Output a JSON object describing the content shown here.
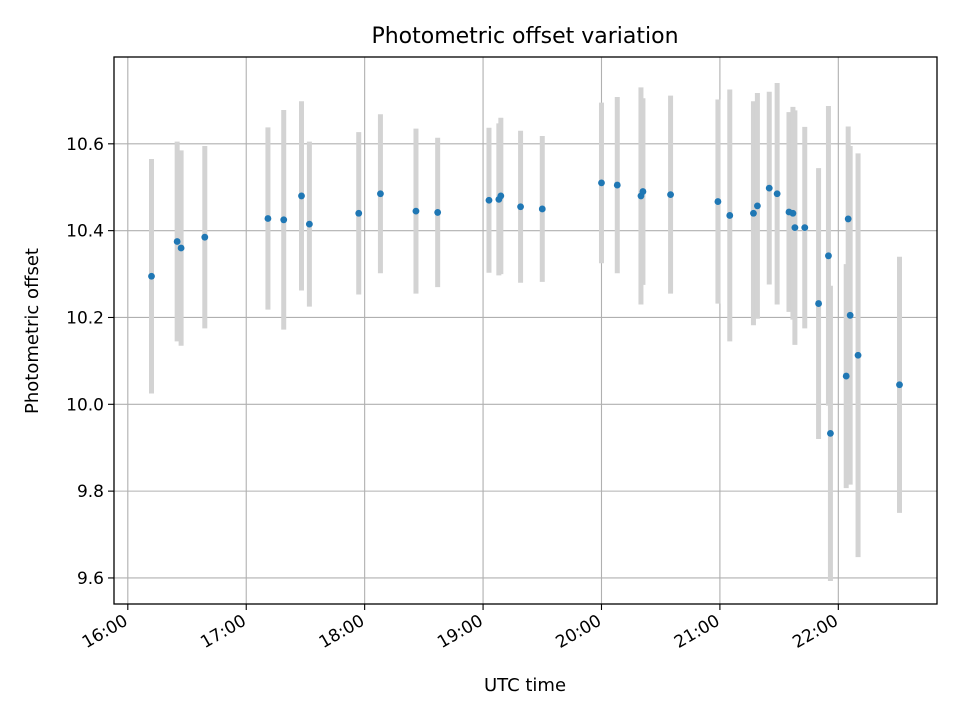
{
  "chart_data": {
    "type": "scatter",
    "title": "Photometric offset variation",
    "xlabel": "UTC time",
    "ylabel": "Photometric offset",
    "x_ticks": [
      "16:00",
      "17:00",
      "18:00",
      "19:00",
      "20:00",
      "21:00",
      "22:00"
    ],
    "y_ticks": [
      "9.6",
      "9.8",
      "10.0",
      "10.2",
      "10.4",
      "10.6"
    ],
    "xlim": [
      "15:53",
      "22:50"
    ],
    "ylim": [
      9.54,
      10.8
    ],
    "grid": true,
    "errorbar_color": "#d3d3d3",
    "point_color": "#1f77b4",
    "points": [
      {
        "x": "16:12",
        "y": 10.295,
        "err": 0.27
      },
      {
        "x": "16:25",
        "y": 10.375,
        "err": 0.23
      },
      {
        "x": "16:27",
        "y": 10.36,
        "err": 0.225
      },
      {
        "x": "16:39",
        "y": 10.385,
        "err": 0.21
      },
      {
        "x": "17:11",
        "y": 10.428,
        "err": 0.21
      },
      {
        "x": "17:19",
        "y": 10.425,
        "err": 0.253
      },
      {
        "x": "17:28",
        "y": 10.48,
        "err": 0.218
      },
      {
        "x": "17:32",
        "y": 10.415,
        "err": 0.19
      },
      {
        "x": "17:57",
        "y": 10.44,
        "err": 0.187
      },
      {
        "x": "18:08",
        "y": 10.485,
        "err": 0.183
      },
      {
        "x": "18:26",
        "y": 10.445,
        "err": 0.19
      },
      {
        "x": "18:37",
        "y": 10.442,
        "err": 0.172
      },
      {
        "x": "19:03",
        "y": 10.47,
        "err": 0.167
      },
      {
        "x": "19:08",
        "y": 10.472,
        "err": 0.175
      },
      {
        "x": "19:09",
        "y": 10.48,
        "err": 0.18
      },
      {
        "x": "19:19",
        "y": 10.455,
        "err": 0.175
      },
      {
        "x": "19:30",
        "y": 10.45,
        "err": 0.168
      },
      {
        "x": "20:00",
        "y": 10.51,
        "err": 0.185
      },
      {
        "x": "20:08",
        "y": 10.505,
        "err": 0.203
      },
      {
        "x": "20:20",
        "y": 10.48,
        "err": 0.25
      },
      {
        "x": "20:21",
        "y": 10.49,
        "err": 0.215
      },
      {
        "x": "20:35",
        "y": 10.483,
        "err": 0.228
      },
      {
        "x": "20:59",
        "y": 10.467,
        "err": 0.235
      },
      {
        "x": "21:05",
        "y": 10.435,
        "err": 0.29
      },
      {
        "x": "21:17",
        "y": 10.44,
        "err": 0.258
      },
      {
        "x": "21:19",
        "y": 10.457,
        "err": 0.26
      },
      {
        "x": "21:25",
        "y": 10.498,
        "err": 0.222
      },
      {
        "x": "21:29",
        "y": 10.485,
        "err": 0.255
      },
      {
        "x": "21:35",
        "y": 10.443,
        "err": 0.23
      },
      {
        "x": "21:37",
        "y": 10.44,
        "err": 0.245
      },
      {
        "x": "21:38",
        "y": 10.407,
        "err": 0.27
      },
      {
        "x": "21:43",
        "y": 10.407,
        "err": 0.232
      },
      {
        "x": "21:50",
        "y": 10.232,
        "err": 0.312
      },
      {
        "x": "21:55",
        "y": 10.342,
        "err": 0.345
      },
      {
        "x": "21:56",
        "y": 9.933,
        "err": 0.34
      },
      {
        "x": "22:04",
        "y": 10.065,
        "err": 0.258
      },
      {
        "x": "22:05",
        "y": 10.427,
        "err": 0.213
      },
      {
        "x": "22:06",
        "y": 10.205,
        "err": 0.39
      },
      {
        "x": "22:10",
        "y": 10.113,
        "err": 0.465
      },
      {
        "x": "22:31",
        "y": 10.045,
        "err": 0.295
      }
    ]
  }
}
